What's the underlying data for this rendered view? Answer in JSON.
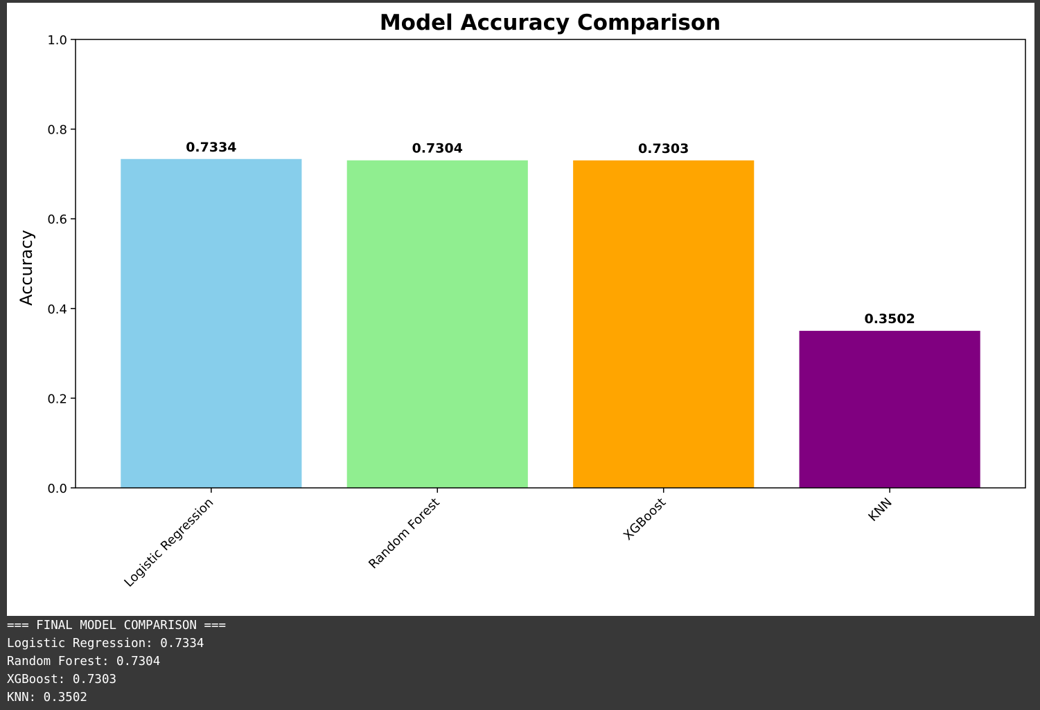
{
  "chart_data": {
    "type": "bar",
    "title": "Model Accuracy Comparison",
    "xlabel": "",
    "ylabel": "Accuracy",
    "ylim": [
      0,
      1.0
    ],
    "yticks": [
      "0.0",
      "0.2",
      "0.4",
      "0.6",
      "0.8",
      "1.0"
    ],
    "grid": false,
    "categories": [
      "Logistic Regression",
      "Random Forest",
      "XGBoost",
      "KNN"
    ],
    "values": [
      0.7334,
      0.7304,
      0.7303,
      0.3502
    ],
    "value_labels": [
      "0.7334",
      "0.7304",
      "0.7303",
      "0.3502"
    ],
    "colors": [
      "#87ceeb",
      "#90ee90",
      "#ffa500",
      "#800080"
    ]
  },
  "output": {
    "lines": [
      "=== FINAL MODEL COMPARISON ===",
      "Logistic Regression: 0.7334",
      "Random Forest: 0.7304",
      "XGBoost: 0.7303",
      "KNN: 0.3502"
    ]
  }
}
